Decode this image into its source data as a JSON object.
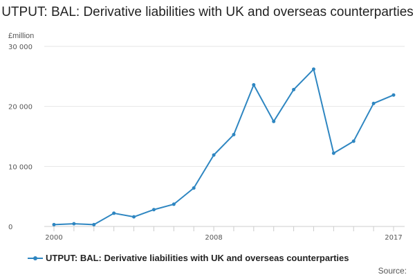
{
  "chart_data": {
    "type": "line",
    "title": "UTPUT: BAL: Derivative liabilities with UK and overseas counterparties",
    "unit_label": "£million",
    "x": [
      2000,
      2001,
      2002,
      2003,
      2004,
      2005,
      2006,
      2007,
      2008,
      2009,
      2010,
      2011,
      2012,
      2013,
      2014,
      2015,
      2016,
      2017
    ],
    "x_tick_labels": [
      "2000",
      "2008",
      "2017"
    ],
    "series": [
      {
        "name": "UTPUT: BAL: Derivative liabilities with UK and overseas counterparties",
        "color": "#2e86c1",
        "values": [
          300,
          450,
          300,
          2200,
          1600,
          2800,
          3700,
          6400,
          11900,
          15300,
          23600,
          17500,
          22800,
          26200,
          12200,
          14200,
          20500,
          21900
        ]
      }
    ],
    "y_ticks": [
      0,
      10000,
      20000,
      30000
    ],
    "y_tick_labels": [
      "0",
      "10 000",
      "20 000",
      "30 000"
    ],
    "ylim": [
      0,
      30000
    ],
    "grid": true,
    "legend_position": "bottom-left",
    "source_label": "Source:"
  }
}
